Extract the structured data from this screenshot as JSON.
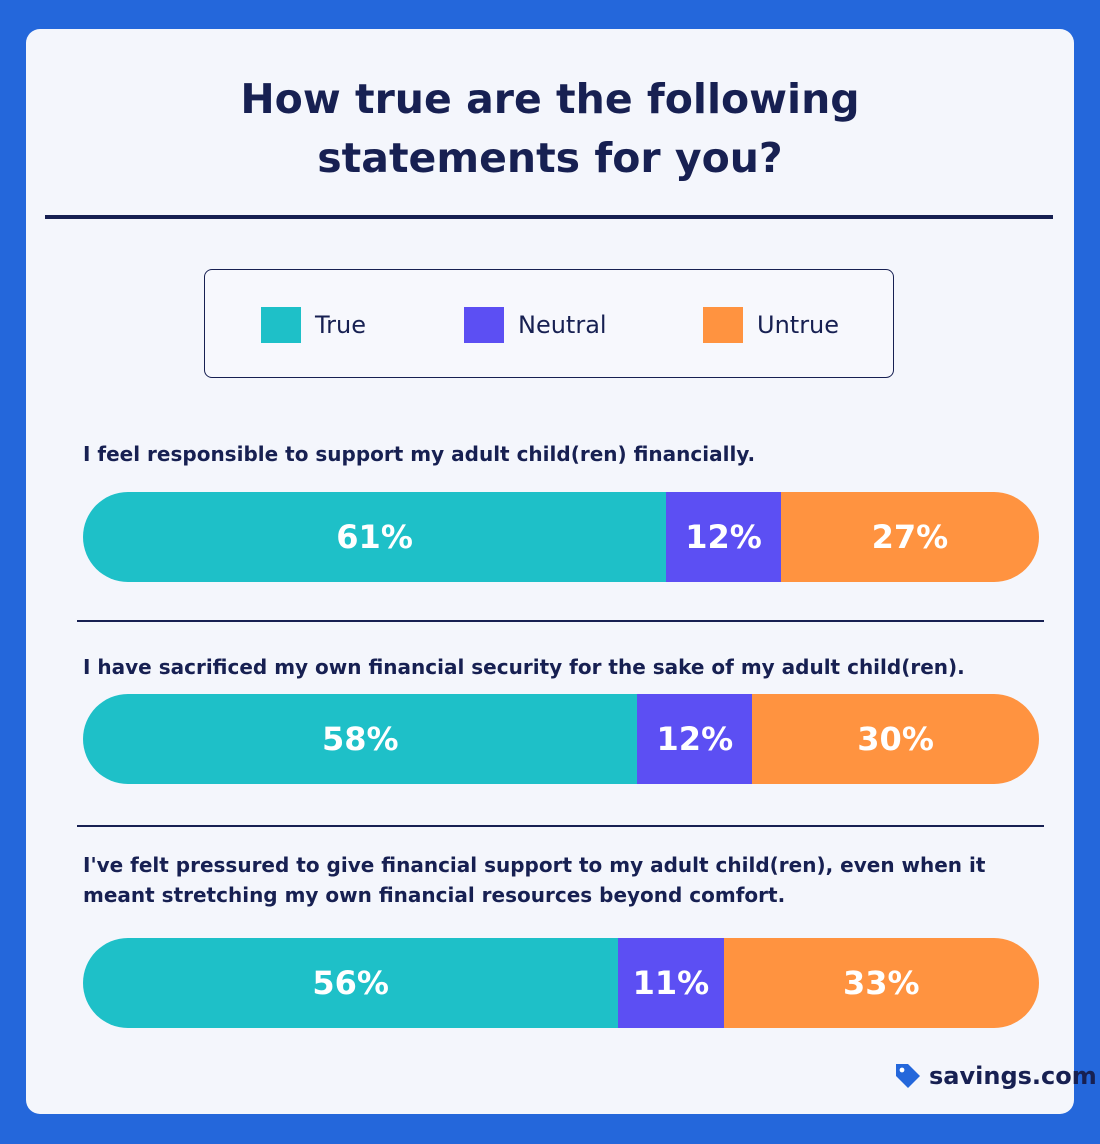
{
  "chart_data": {
    "type": "bar",
    "orientation": "horizontal",
    "stacked": true,
    "title": "How true are the following statements for you?",
    "legend": [
      {
        "name": "True",
        "color": "#1ec0c8"
      },
      {
        "name": "Neutral",
        "color": "#5c4ff3"
      },
      {
        "name": "Untrue",
        "color": "#ff9340"
      }
    ],
    "categories": [
      "I feel responsible to support my adult child(ren) financially.",
      "I have sacrificed my own financial security for the sake of my adult child(ren).",
      "I've felt pressured to give financial support to my adult child(ren), even when it meant stretching my own financial resources beyond comfort."
    ],
    "series": [
      {
        "name": "True",
        "values": [
          61,
          58,
          56
        ]
      },
      {
        "name": "Neutral",
        "values": [
          12,
          12,
          11
        ]
      },
      {
        "name": "Untrue",
        "values": [
          27,
          30,
          33
        ]
      }
    ],
    "unit": "%"
  },
  "header": {
    "title_line1": "How true are the following",
    "title_line2": "statements for you?"
  },
  "questions": {
    "q1": "I feel responsible to support my adult child(ren) financially.",
    "q2": "I have sacrificed my own financial security for the sake of my adult child(ren).",
    "q3_line1": "I've felt pressured to give financial support to my adult child(ren), even when it",
    "q3_line2": "meant stretching my own financial resources beyond comfort."
  },
  "brand": {
    "name": "savings.com",
    "icon": "price-tag-icon",
    "color": "#2467db"
  }
}
